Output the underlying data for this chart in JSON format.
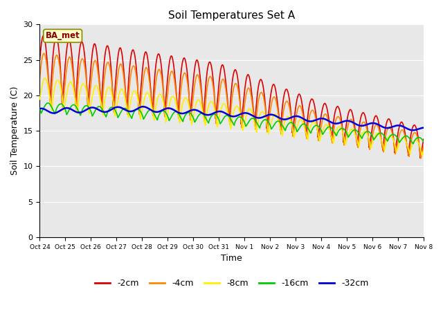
{
  "title": "Soil Temperatures Set A",
  "xlabel": "Time",
  "ylabel": "Soil Temperature (C)",
  "ylim": [
    0,
    30
  ],
  "plot_bg": "#e8e8e8",
  "fig_bg": "#ffffff",
  "annotation_text": "BA_met",
  "annotation_color": "#880000",
  "annotation_bg": "#ffffcc",
  "annotation_edge": "#888800",
  "series_colors": {
    "-2cm": "#dd0000",
    "-4cm": "#ff8800",
    "-8cm": "#ffee00",
    "-16cm": "#00cc00",
    "-32cm": "#0000dd"
  },
  "xtick_labels": [
    "Oct 24",
    "Oct 25",
    "Oct 26",
    "Oct 27",
    "Oct 28",
    "Oct 29",
    "Oct 30",
    "Oct 31",
    "Nov 1",
    "Nov 2",
    "Nov 3",
    "Nov 4",
    "Nov 5",
    "Nov 6",
    "Nov 7",
    "Nov 8"
  ],
  "ytick_labels": [
    0,
    5,
    10,
    15,
    20,
    25,
    30
  ],
  "grid_color": "#ffffff",
  "linewidth": 1.2,
  "linewidth_32": 1.8
}
